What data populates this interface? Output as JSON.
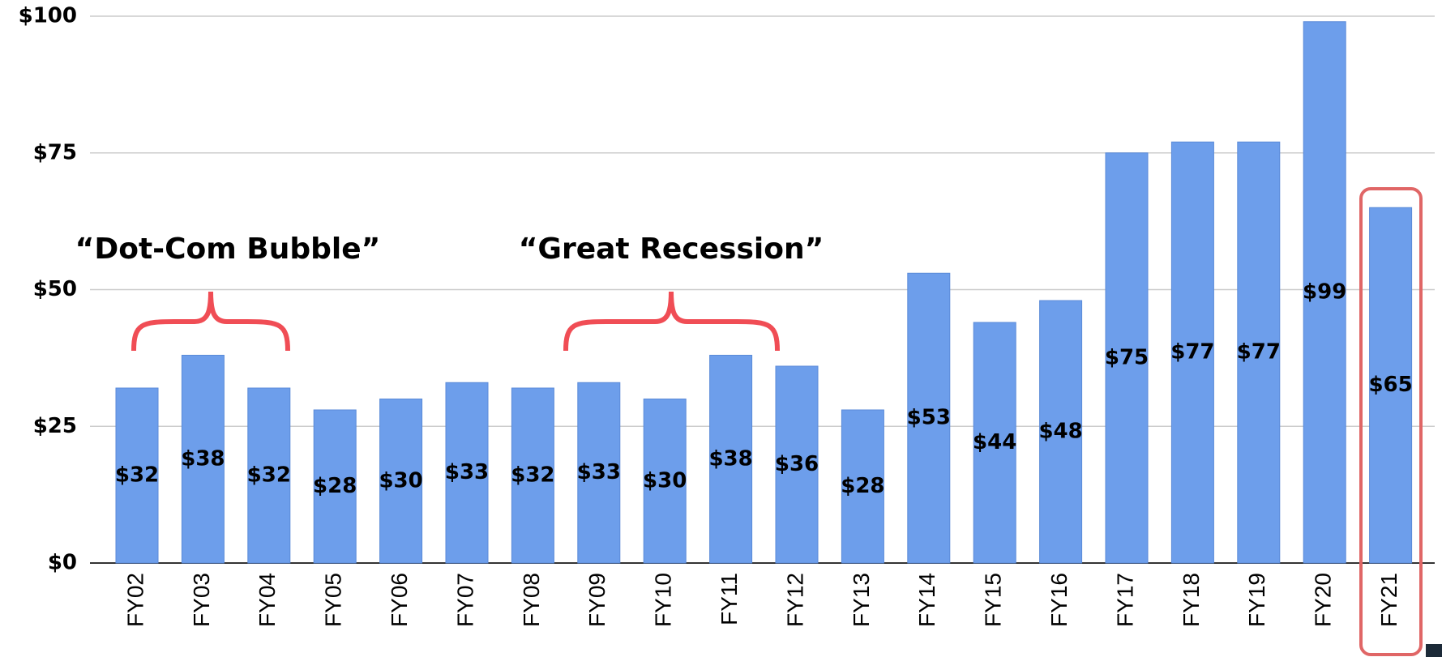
{
  "chart_data": {
    "type": "bar",
    "categories": [
      "FY02",
      "FY03",
      "FY04",
      "FY05",
      "FY06",
      "FY07",
      "FY08",
      "FY09",
      "FY10",
      "FY11",
      "FY12",
      "FY13",
      "FY14",
      "FY15",
      "FY16",
      "FY17",
      "FY18",
      "FY19",
      "FY20",
      "FY21"
    ],
    "values": [
      32,
      38,
      32,
      28,
      30,
      33,
      32,
      33,
      30,
      38,
      36,
      28,
      53,
      44,
      48,
      75,
      77,
      77,
      99,
      65
    ],
    "value_labels": [
      "$32",
      "$38",
      "$32",
      "$28",
      "$30",
      "$33",
      "$32",
      "$33",
      "$30",
      "$38",
      "$36",
      "$28",
      "$53",
      "$44",
      "$48",
      "$75",
      "$77",
      "$77",
      "$99",
      "$65"
    ],
    "color": "#6d9eeb",
    "ylim": [
      0,
      100
    ],
    "yticks": [
      {
        "value": 0,
        "label": "$0"
      },
      {
        "value": 25,
        "label": "$25"
      },
      {
        "value": 50,
        "label": "$50"
      },
      {
        "value": 75,
        "label": "$75"
      },
      {
        "value": 100,
        "label": "$100"
      }
    ],
    "grid": true,
    "annotations": [
      "“Dot-Com Bubble”",
      "“Great Recession”"
    ]
  }
}
